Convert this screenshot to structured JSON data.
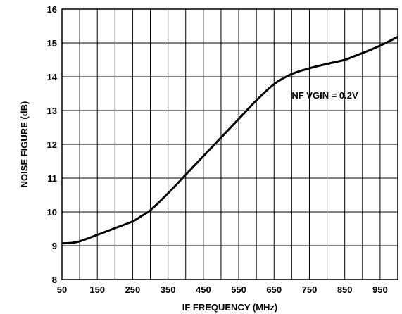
{
  "chart_data": {
    "type": "line",
    "title": "",
    "xlabel": "IF FREQUENCY (MHz)",
    "ylabel": "NOISE FIGURE (dB)",
    "xlim": [
      50,
      1000
    ],
    "ylim": [
      8,
      16
    ],
    "x_ticks": [
      "50",
      "150",
      "250",
      "350",
      "450",
      "550",
      "650",
      "750",
      "850",
      "950"
    ],
    "x_tick_values": [
      50,
      150,
      250,
      350,
      450,
      550,
      650,
      750,
      850,
      950
    ],
    "y_ticks": [
      "8",
      "9",
      "10",
      "11",
      "12",
      "13",
      "14",
      "15",
      "16"
    ],
    "y_tick_values": [
      8,
      9,
      10,
      11,
      12,
      13,
      14,
      15,
      16
    ],
    "x_grid_values": [
      50,
      100,
      150,
      200,
      250,
      300,
      350,
      400,
      450,
      500,
      550,
      600,
      650,
      700,
      750,
      800,
      850,
      900,
      950,
      1000
    ],
    "y_grid_values": [
      8,
      9,
      10,
      11,
      12,
      13,
      14,
      15,
      16
    ],
    "grid": true,
    "annotation": {
      "text": "NF VGIN = 0.2V",
      "x": 700,
      "y": 13.35
    },
    "series": [
      {
        "color": "#000000",
        "x": [
          50,
          75,
          100,
          150,
          200,
          250,
          275,
          300,
          350,
          400,
          450,
          500,
          550,
          600,
          650,
          700,
          750,
          800,
          850,
          875,
          900,
          950,
          1000
        ],
        "y": [
          9.07,
          9.08,
          9.13,
          9.32,
          9.52,
          9.72,
          9.88,
          10.05,
          10.55,
          11.1,
          11.65,
          12.2,
          12.75,
          13.3,
          13.78,
          14.08,
          14.25,
          14.38,
          14.5,
          14.6,
          14.7,
          14.92,
          15.18
        ]
      }
    ]
  }
}
